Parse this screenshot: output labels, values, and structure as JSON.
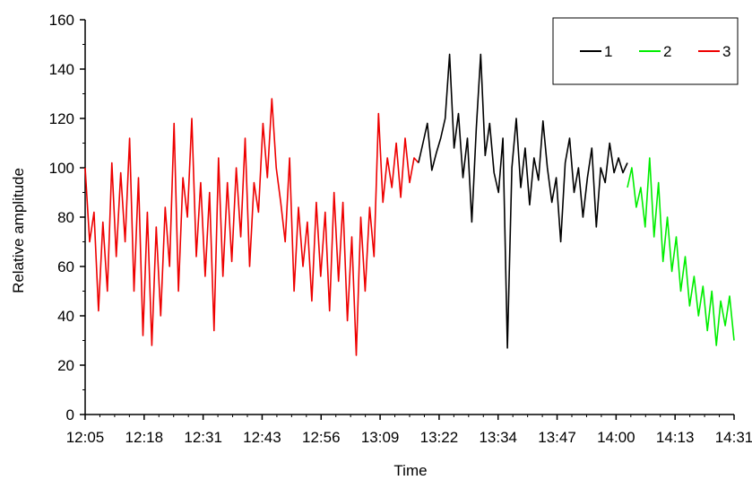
{
  "chart_data": {
    "type": "line",
    "title": "",
    "xlabel": "Time",
    "ylabel": "Relative amplitude",
    "ylim": [
      0,
      160
    ],
    "yticks": [
      0,
      20,
      40,
      60,
      80,
      100,
      120,
      140,
      160
    ],
    "x_tick_labels": [
      "12:05",
      "12:18",
      "12:31",
      "12:43",
      "12:56",
      "13:09",
      "13:22",
      "13:34",
      "13:47",
      "14:00",
      "14:13",
      "14:31"
    ],
    "grid": false,
    "legend_position": "top-right",
    "series": [
      {
        "name": "1",
        "color": "#000000",
        "points": [
          [
            "13:20",
            102
          ],
          [
            "13:21",
            110
          ],
          [
            "13:22",
            118
          ],
          [
            "13:23",
            99
          ],
          [
            "13:24",
            106
          ],
          [
            "13:25",
            112
          ],
          [
            "13:26",
            120
          ],
          [
            "13:27",
            146
          ],
          [
            "13:28",
            108
          ],
          [
            "13:29",
            122
          ],
          [
            "13:30",
            96
          ],
          [
            "13:31",
            112
          ],
          [
            "13:32",
            78
          ],
          [
            "13:33",
            116
          ],
          [
            "13:34",
            146
          ],
          [
            "13:35",
            105
          ],
          [
            "13:36",
            118
          ],
          [
            "13:37",
            98
          ],
          [
            "13:38",
            90
          ],
          [
            "13:39",
            112
          ],
          [
            "13:40",
            27
          ],
          [
            "13:41",
            100
          ],
          [
            "13:42",
            120
          ],
          [
            "13:43",
            92
          ],
          [
            "13:44",
            108
          ],
          [
            "13:45",
            85
          ],
          [
            "13:46",
            104
          ],
          [
            "13:47",
            95
          ],
          [
            "13:48",
            119
          ],
          [
            "13:49",
            100
          ],
          [
            "13:50",
            86
          ],
          [
            "13:51",
            96
          ],
          [
            "13:52",
            70
          ],
          [
            "13:53",
            102
          ],
          [
            "13:54",
            112
          ],
          [
            "13:55",
            90
          ],
          [
            "13:56",
            100
          ],
          [
            "13:57",
            80
          ],
          [
            "13:58",
            96
          ],
          [
            "13:59",
            108
          ],
          [
            "14:00",
            76
          ],
          [
            "14:01",
            100
          ],
          [
            "14:02",
            94
          ],
          [
            "14:03",
            110
          ],
          [
            "14:04",
            98
          ],
          [
            "14:05",
            104
          ],
          [
            "14:06",
            98
          ],
          [
            "14:07",
            102
          ]
        ]
      },
      {
        "name": "2",
        "color": "#00ee00",
        "points": [
          [
            "14:07",
            92
          ],
          [
            "14:08",
            100
          ],
          [
            "14:09",
            84
          ],
          [
            "14:10",
            92
          ],
          [
            "14:11",
            76
          ],
          [
            "14:12",
            104
          ],
          [
            "14:13",
            72
          ],
          [
            "14:14",
            94
          ],
          [
            "14:15",
            62
          ],
          [
            "14:16",
            80
          ],
          [
            "14:17",
            58
          ],
          [
            "14:18",
            72
          ],
          [
            "14:19",
            50
          ],
          [
            "14:20",
            64
          ],
          [
            "14:21",
            44
          ],
          [
            "14:22",
            56
          ],
          [
            "14:23",
            40
          ],
          [
            "14:24",
            52
          ],
          [
            "14:25",
            34
          ],
          [
            "14:26",
            50
          ],
          [
            "14:27",
            28
          ],
          [
            "14:28",
            46
          ],
          [
            "14:29",
            36
          ],
          [
            "14:30",
            48
          ],
          [
            "14:31",
            30
          ]
        ]
      },
      {
        "name": "3",
        "color": "#ee0000",
        "points": [
          [
            "12:05",
            100
          ],
          [
            "12:06",
            70
          ],
          [
            "12:07",
            82
          ],
          [
            "12:08",
            42
          ],
          [
            "12:09",
            78
          ],
          [
            "12:10",
            50
          ],
          [
            "12:11",
            102
          ],
          [
            "12:12",
            64
          ],
          [
            "12:13",
            98
          ],
          [
            "12:14",
            70
          ],
          [
            "12:15",
            112
          ],
          [
            "12:16",
            50
          ],
          [
            "12:17",
            96
          ],
          [
            "12:18",
            32
          ],
          [
            "12:19",
            82
          ],
          [
            "12:20",
            28
          ],
          [
            "12:21",
            76
          ],
          [
            "12:22",
            40
          ],
          [
            "12:23",
            84
          ],
          [
            "12:24",
            60
          ],
          [
            "12:25",
            118
          ],
          [
            "12:26",
            50
          ],
          [
            "12:27",
            96
          ],
          [
            "12:28",
            80
          ],
          [
            "12:29",
            120
          ],
          [
            "12:30",
            64
          ],
          [
            "12:31",
            94
          ],
          [
            "12:32",
            56
          ],
          [
            "12:33",
            90
          ],
          [
            "12:34",
            34
          ],
          [
            "12:35",
            104
          ],
          [
            "12:36",
            56
          ],
          [
            "12:37",
            94
          ],
          [
            "12:38",
            62
          ],
          [
            "12:39",
            100
          ],
          [
            "12:40",
            72
          ],
          [
            "12:41",
            112
          ],
          [
            "12:42",
            60
          ],
          [
            "12:43",
            94
          ],
          [
            "12:44",
            82
          ],
          [
            "12:45",
            118
          ],
          [
            "12:46",
            96
          ],
          [
            "12:47",
            128
          ],
          [
            "12:48",
            100
          ],
          [
            "12:49",
            86
          ],
          [
            "12:50",
            70
          ],
          [
            "12:51",
            104
          ],
          [
            "12:52",
            50
          ],
          [
            "12:53",
            84
          ],
          [
            "12:54",
            60
          ],
          [
            "12:55",
            78
          ],
          [
            "12:56",
            46
          ],
          [
            "12:57",
            86
          ],
          [
            "12:58",
            56
          ],
          [
            "12:59",
            82
          ],
          [
            "13:00",
            42
          ],
          [
            "13:01",
            90
          ],
          [
            "13:02",
            54
          ],
          [
            "13:03",
            86
          ],
          [
            "13:04",
            38
          ],
          [
            "13:05",
            72
          ],
          [
            "13:06",
            24
          ],
          [
            "13:07",
            80
          ],
          [
            "13:08",
            50
          ],
          [
            "13:09",
            84
          ],
          [
            "13:10",
            64
          ],
          [
            "13:11",
            122
          ],
          [
            "13:12",
            86
          ],
          [
            "13:13",
            104
          ],
          [
            "13:14",
            92
          ],
          [
            "13:15",
            110
          ],
          [
            "13:16",
            88
          ],
          [
            "13:17",
            112
          ],
          [
            "13:18",
            94
          ],
          [
            "13:19",
            104
          ],
          [
            "13:20",
            102
          ]
        ]
      }
    ]
  }
}
